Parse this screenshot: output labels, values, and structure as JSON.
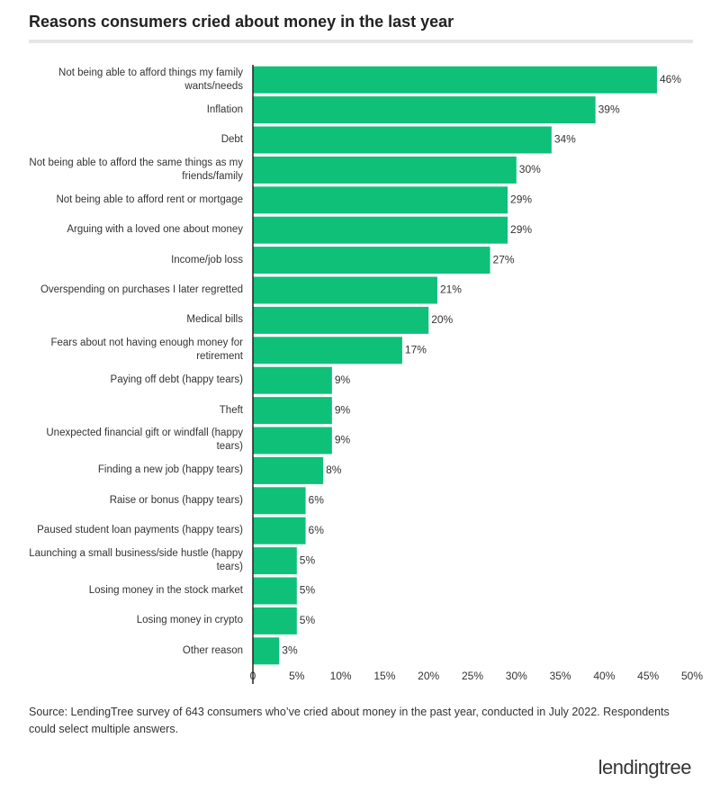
{
  "chart_data": {
    "type": "hbar",
    "title": "Reasons consumers cried about money in the last year",
    "categories": [
      "Not being able to afford things my family wants/needs",
      "Inflation",
      "Debt",
      "Not being able to afford the same things as my friends/family",
      "Not being able to afford rent or mortgage",
      "Arguing with a loved one about money",
      "Income/job loss",
      "Overspending on purchases I later regretted",
      "Medical bills",
      "Fears about not having enough money for retirement",
      "Paying off debt (happy tears)",
      "Theft",
      "Unexpected financial gift or windfall (happy tears)",
      "Finding a new job (happy tears)",
      "Raise or bonus (happy tears)",
      "Paused student loan payments (happy tears)",
      "Launching a small business/side hustle (happy tears)",
      "Losing money in the stock market",
      "Losing money in crypto",
      "Other reason"
    ],
    "values": [
      46,
      39,
      34,
      30,
      29,
      29,
      27,
      21,
      20,
      17,
      9,
      9,
      9,
      8,
      6,
      6,
      5,
      5,
      5,
      3
    ],
    "value_labels": [
      "46%",
      "39%",
      "34%",
      "30%",
      "29%",
      "29%",
      "27%",
      "21%",
      "20%",
      "17%",
      "9%",
      "9%",
      "9%",
      "8%",
      "6%",
      "6%",
      "5%",
      "5%",
      "5%",
      "3%"
    ],
    "color": "#0fc078",
    "xlim": [
      0,
      50
    ],
    "xticks": [
      0,
      {
        "value": 5,
        "label": "5%"
      },
      {
        "value": 10,
        "label": "10%"
      },
      {
        "value": 15,
        "label": "15%"
      },
      {
        "value": 20,
        "label": "20%"
      },
      {
        "value": 25,
        "label": "25%"
      },
      {
        "value": 30,
        "label": "30%"
      },
      {
        "value": 35,
        "label": "35%"
      },
      {
        "value": 40,
        "label": "40%"
      },
      {
        "value": 45,
        "label": "45%"
      },
      {
        "value": 50,
        "label": "50%"
      }
    ],
    "grid": false,
    "source": "Source: LendingTree survey of 643 consumers who’ve cried about money in the past year, conducted in July 2022. Respondents could select multiple answers.",
    "logo": "lendingtree"
  }
}
